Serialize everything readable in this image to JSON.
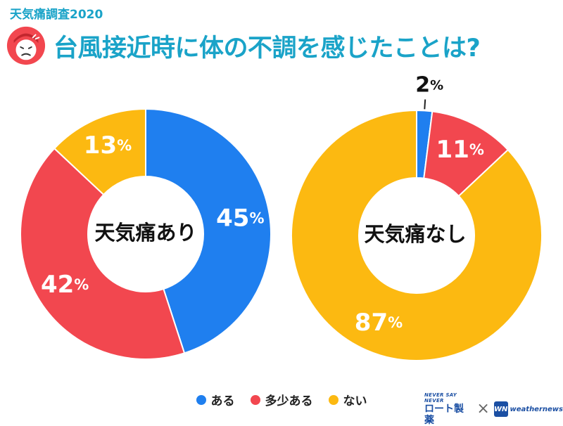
{
  "survey_label": "天気痛調査2020",
  "title": "台風接近時に体の不調を感じたことは?",
  "colors": {
    "title": "#1aa3c8",
    "aru": "#1f7fef",
    "tashou": "#f2474f",
    "nai": "#fcb911"
  },
  "legend": [
    {
      "label": "ある",
      "color": "#1f7fef"
    },
    {
      "label": "多少ある",
      "color": "#f2474f"
    },
    {
      "label": "ない",
      "color": "#fcb911"
    }
  ],
  "logos": {
    "rohto_tagline": "NEVER SAY NEVER",
    "rohto_name": "ロート製薬",
    "cross": "×",
    "wn_badge": "WN",
    "wn_name": "weathernews"
  },
  "chart_data": [
    {
      "type": "pie",
      "center_label": "天気痛あり",
      "categories": [
        "ある",
        "多少ある",
        "ない"
      ],
      "values": [
        45,
        42,
        13
      ],
      "labels": [
        "45",
        "42",
        "13"
      ],
      "unit": "%"
    },
    {
      "type": "pie",
      "center_label": "天気痛なし",
      "categories": [
        "ある",
        "多少ある",
        "ない"
      ],
      "values": [
        2,
        11,
        87
      ],
      "labels": [
        "2",
        "11",
        "87"
      ],
      "unit": "%"
    }
  ]
}
